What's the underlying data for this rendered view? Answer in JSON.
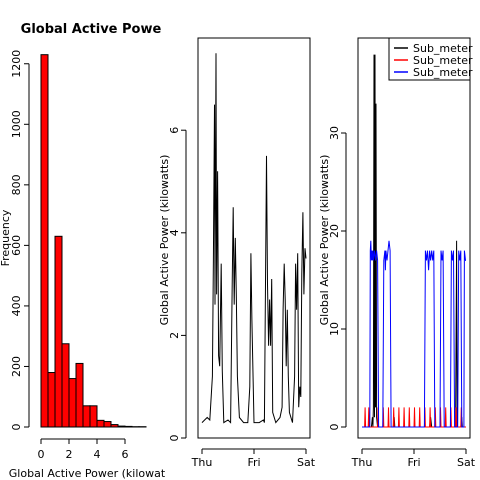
{
  "chart_data": [
    {
      "type": "bar",
      "title": "Global Active Powe",
      "xlabel": "Global Active Power (kilowat",
      "ylabel": "Frequency",
      "bar_color": "#ff0000",
      "bin_edges": [
        0,
        0.5,
        1,
        1.5,
        2,
        2.5,
        3,
        3.5,
        4,
        4.5,
        5,
        5.5,
        6,
        6.5,
        7,
        7.5
      ],
      "values": [
        1230,
        180,
        630,
        275,
        160,
        210,
        70,
        70,
        22,
        18,
        8,
        3,
        2,
        1,
        1
      ],
      "xticks": [
        "0",
        "2",
        "4",
        "6"
      ],
      "yticks": [
        "0",
        "200",
        "400",
        "600",
        "800",
        "1000",
        "1200"
      ],
      "xlim": [
        0,
        7.5
      ],
      "ylim": [
        0,
        1260
      ]
    },
    {
      "type": "line",
      "title": "",
      "xlabel": "",
      "ylabel": "Global Active Power (kilowatts)",
      "line_color": "#000000",
      "x_ticks": [
        "Thu",
        "Fri",
        "Sat"
      ],
      "yticks": [
        "0",
        "2",
        "4",
        "6"
      ],
      "x_range_days": [
        0,
        2
      ],
      "ylim": [
        0,
        7.6
      ],
      "keypoints": [
        [
          0.0,
          0.3
        ],
        [
          0.05,
          0.35
        ],
        [
          0.1,
          0.4
        ],
        [
          0.15,
          0.35
        ],
        [
          0.2,
          1.2
        ],
        [
          0.22,
          3.5
        ],
        [
          0.24,
          6.5
        ],
        [
          0.25,
          2.6
        ],
        [
          0.27,
          7.5
        ],
        [
          0.28,
          2.8
        ],
        [
          0.3,
          5.2
        ],
        [
          0.32,
          1.6
        ],
        [
          0.34,
          1.4
        ],
        [
          0.37,
          3.4
        ],
        [
          0.39,
          1.3
        ],
        [
          0.42,
          0.3
        ],
        [
          0.5,
          0.35
        ],
        [
          0.55,
          0.3
        ],
        [
          0.58,
          3.0
        ],
        [
          0.6,
          4.5
        ],
        [
          0.62,
          2.6
        ],
        [
          0.64,
          3.9
        ],
        [
          0.66,
          2.8
        ],
        [
          0.68,
          1.2
        ],
        [
          0.72,
          0.4
        ],
        [
          0.8,
          0.3
        ],
        [
          0.88,
          0.3
        ],
        [
          0.92,
          1.0
        ],
        [
          0.94,
          3.6
        ],
        [
          0.96,
          2.3
        ],
        [
          1.0,
          0.3
        ],
        [
          1.1,
          0.3
        ],
        [
          1.18,
          0.35
        ],
        [
          1.2,
          0.3
        ],
        [
          1.24,
          5.5
        ],
        [
          1.26,
          3.0
        ],
        [
          1.28,
          1.8
        ],
        [
          1.3,
          2.7
        ],
        [
          1.32,
          1.8
        ],
        [
          1.34,
          3.1
        ],
        [
          1.36,
          0.5
        ],
        [
          1.42,
          0.3
        ],
        [
          1.5,
          0.4
        ],
        [
          1.54,
          0.6
        ],
        [
          1.56,
          2.5
        ],
        [
          1.58,
          3.4
        ],
        [
          1.6,
          2.7
        ],
        [
          1.62,
          1.4
        ],
        [
          1.64,
          2.5
        ],
        [
          1.66,
          1.2
        ],
        [
          1.68,
          0.5
        ],
        [
          1.74,
          0.3
        ],
        [
          1.78,
          1.2
        ],
        [
          1.8,
          3.4
        ],
        [
          1.82,
          2.5
        ],
        [
          1.84,
          3.6
        ],
        [
          1.86,
          0.6
        ],
        [
          1.88,
          1.0
        ],
        [
          1.9,
          0.8
        ],
        [
          1.92,
          3.2
        ],
        [
          1.94,
          4.4
        ],
        [
          1.96,
          2.8
        ],
        [
          1.98,
          3.7
        ],
        [
          2.0,
          3.5
        ]
      ]
    },
    {
      "type": "line",
      "title": "",
      "xlabel": "",
      "ylabel": "Global Active Power (kilowatts)",
      "x_ticks": [
        "Thu",
        "Fri",
        "Sat"
      ],
      "yticks": [
        "0",
        "10",
        "20",
        "30"
      ],
      "x_range_days": [
        0,
        2
      ],
      "ylim": [
        0,
        39
      ],
      "legend": {
        "placement": "top-right",
        "entries": [
          "Sub_meter",
          "Sub_meter",
          "Sub_meter"
        ]
      },
      "series": [
        {
          "name": "Sub_meter",
          "color": "#000000",
          "keypoints": [
            [
              0.0,
              0
            ],
            [
              0.18,
              0
            ],
            [
              0.2,
              1
            ],
            [
              0.21,
              0
            ],
            [
              0.22,
              2
            ],
            [
              0.23,
              38
            ],
            [
              0.24,
              1
            ],
            [
              0.25,
              38
            ],
            [
              0.26,
              2
            ],
            [
              0.27,
              33
            ],
            [
              0.28,
              1
            ],
            [
              0.3,
              0
            ],
            [
              0.6,
              0
            ],
            [
              0.62,
              1
            ],
            [
              0.63,
              0
            ],
            [
              1.3,
              0
            ],
            [
              1.32,
              1
            ],
            [
              1.34,
              0
            ],
            [
              1.8,
              0
            ],
            [
              1.82,
              19
            ],
            [
              1.83,
              0
            ],
            [
              1.9,
              0
            ],
            [
              1.92,
              1
            ],
            [
              1.93,
              0
            ],
            [
              2.0,
              0
            ]
          ]
        },
        {
          "name": "Sub_meter",
          "color": "#ff0000",
          "keypoints": [
            [
              0.0,
              0
            ],
            [
              0.05,
              0
            ],
            [
              0.06,
              2
            ],
            [
              0.07,
              0
            ],
            [
              0.12,
              0
            ],
            [
              0.13,
              2
            ],
            [
              0.14,
              0
            ],
            [
              0.3,
              0
            ],
            [
              0.31,
              2
            ],
            [
              0.32,
              0
            ],
            [
              0.4,
              0
            ],
            [
              0.41,
              2
            ],
            [
              0.42,
              0
            ],
            [
              0.5,
              0
            ],
            [
              0.51,
              2
            ],
            [
              0.52,
              0
            ],
            [
              0.6,
              0
            ],
            [
              0.61,
              2
            ],
            [
              0.62,
              0
            ],
            [
              0.7,
              0
            ],
            [
              0.71,
              2
            ],
            [
              0.72,
              0
            ],
            [
              0.8,
              0
            ],
            [
              0.81,
              2
            ],
            [
              0.82,
              0
            ],
            [
              0.9,
              0
            ],
            [
              0.91,
              2
            ],
            [
              0.92,
              0
            ],
            [
              1.0,
              0
            ],
            [
              1.01,
              2
            ],
            [
              1.02,
              0
            ],
            [
              1.1,
              0
            ],
            [
              1.11,
              2
            ],
            [
              1.12,
              0
            ],
            [
              1.2,
              0
            ],
            [
              1.21,
              2
            ],
            [
              1.22,
              0
            ],
            [
              1.3,
              0
            ],
            [
              1.31,
              2
            ],
            [
              1.32,
              0
            ],
            [
              1.4,
              0
            ],
            [
              1.41,
              2
            ],
            [
              1.42,
              0
            ],
            [
              1.5,
              0
            ],
            [
              1.51,
              2
            ],
            [
              1.52,
              0
            ],
            [
              1.6,
              0
            ],
            [
              1.61,
              2
            ],
            [
              1.62,
              0
            ],
            [
              1.7,
              0
            ],
            [
              1.71,
              2
            ],
            [
              1.72,
              0
            ],
            [
              1.8,
              0
            ],
            [
              1.81,
              2
            ],
            [
              1.82,
              0
            ],
            [
              1.9,
              0
            ],
            [
              1.91,
              2
            ],
            [
              1.92,
              0
            ],
            [
              2.0,
              0
            ]
          ]
        },
        {
          "name": "Sub_meter",
          "color": "#0000ff",
          "keypoints": [
            [
              0.0,
              0
            ],
            [
              0.15,
              0
            ],
            [
              0.16,
              18
            ],
            [
              0.17,
              19
            ],
            [
              0.18,
              17
            ],
            [
              0.19,
              18
            ],
            [
              0.2,
              17
            ],
            [
              0.21,
              18
            ],
            [
              0.22,
              17
            ],
            [
              0.24,
              18
            ],
            [
              0.26,
              17
            ],
            [
              0.28,
              18
            ],
            [
              0.3,
              17
            ],
            [
              0.32,
              0
            ],
            [
              0.4,
              0
            ],
            [
              0.42,
              17
            ],
            [
              0.44,
              18
            ],
            [
              0.45,
              16
            ],
            [
              0.46,
              18
            ],
            [
              0.48,
              17
            ],
            [
              0.5,
              18
            ],
            [
              0.52,
              19
            ],
            [
              0.54,
              18
            ],
            [
              0.56,
              0
            ],
            [
              1.2,
              0
            ],
            [
              1.22,
              18
            ],
            [
              1.24,
              17
            ],
            [
              1.26,
              18
            ],
            [
              1.28,
              16
            ],
            [
              1.3,
              18
            ],
            [
              1.32,
              17
            ],
            [
              1.34,
              18
            ],
            [
              1.36,
              17
            ],
            [
              1.38,
              18
            ],
            [
              1.4,
              0
            ],
            [
              1.5,
              0
            ],
            [
              1.52,
              18
            ],
            [
              1.54,
              17
            ],
            [
              1.56,
              18
            ],
            [
              1.58,
              0
            ],
            [
              1.7,
              0
            ],
            [
              1.72,
              18
            ],
            [
              1.74,
              17
            ],
            [
              1.76,
              18
            ],
            [
              1.78,
              0
            ],
            [
              1.84,
              0
            ],
            [
              1.86,
              18
            ],
            [
              1.88,
              17
            ],
            [
              1.9,
              18
            ],
            [
              1.92,
              0
            ],
            [
              1.96,
              0
            ],
            [
              1.97,
              18
            ],
            [
              1.99,
              17
            ],
            [
              2.0,
              17
            ]
          ]
        }
      ]
    }
  ]
}
